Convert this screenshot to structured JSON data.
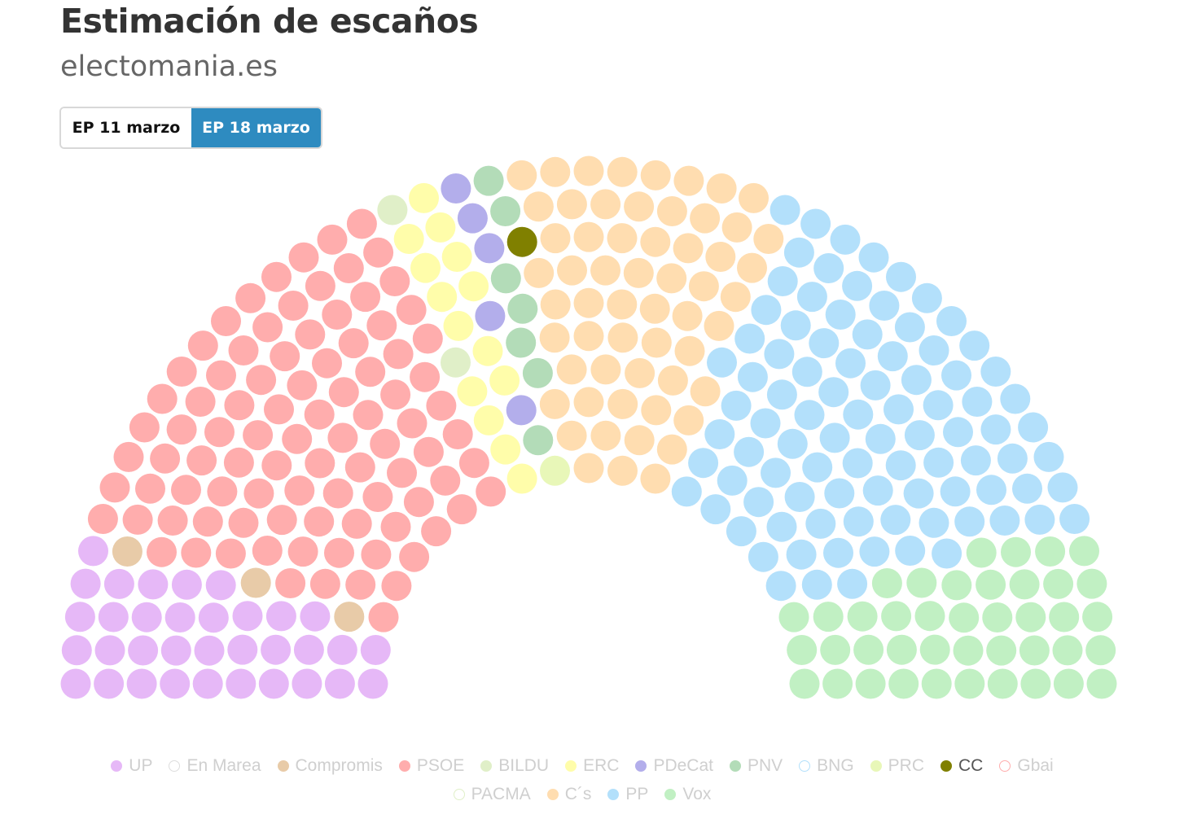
{
  "header": {
    "title": "Estimación de escaños",
    "subtitle": "electomania.es"
  },
  "tabs": [
    {
      "label": "EP 11 marzo",
      "selected": false
    },
    {
      "label": "EP 18 marzo",
      "selected": true
    }
  ],
  "chart_data": {
    "type": "parliament",
    "total_seats": 350,
    "parties": [
      {
        "name": "UP",
        "seats": 34,
        "color": "#e6b8f7",
        "highlighted": false
      },
      {
        "name": "En Marea",
        "seats": 0,
        "color": "#ffffff",
        "highlighted": false
      },
      {
        "name": "Compromis",
        "seats": 3,
        "color": "#e8cba8",
        "highlighted": false
      },
      {
        "name": "PSOE",
        "seats": 93,
        "color": "#ffadad",
        "highlighted": false
      },
      {
        "name": "BILDU",
        "seats": 2,
        "color": "#e0efc8",
        "highlighted": false
      },
      {
        "name": "ERC",
        "seats": 14,
        "color": "#fffdaa",
        "highlighted": false
      },
      {
        "name": "PDeCat",
        "seats": 5,
        "color": "#b3aeeb",
        "highlighted": false
      },
      {
        "name": "PNV",
        "seats": 7,
        "color": "#b3dcb8",
        "highlighted": false
      },
      {
        "name": "BNG",
        "seats": 0,
        "color": "#ffffff",
        "highlighted": false
      },
      {
        "name": "PRC",
        "seats": 1,
        "color": "#e8f7b8",
        "highlighted": false
      },
      {
        "name": "CC",
        "seats": 1,
        "color": "#808000",
        "highlighted": true
      },
      {
        "name": "Gbai",
        "seats": 0,
        "color": "#ffffff",
        "highlighted": false
      },
      {
        "name": "PACMA",
        "seats": 0,
        "color": "#ffffff",
        "highlighted": false
      },
      {
        "name": "C´s",
        "seats": 58,
        "color": "#ffddb0",
        "highlighted": false
      },
      {
        "name": "PP",
        "seats": 91,
        "color": "#b3e0fb",
        "highlighted": false
      },
      {
        "name": "Vox",
        "seats": 41,
        "color": "#c1f0c3",
        "highlighted": false
      }
    ]
  },
  "legend_border_colors": {
    "En Marea": "#dddddd",
    "BNG": "#b3e0fb",
    "Gbai": "#ffadad",
    "PACMA": "#e0efc8"
  }
}
